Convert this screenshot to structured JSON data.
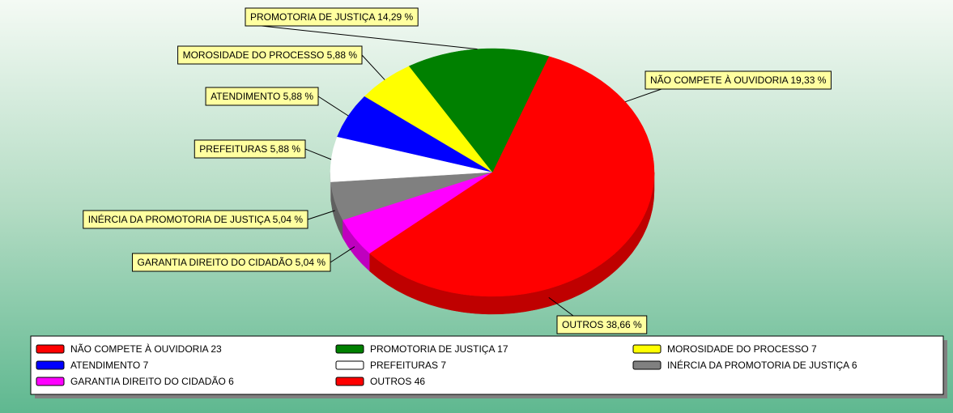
{
  "chart_data": {
    "type": "pie",
    "categories": [
      "NÃO COMPETE À OUVIDORIA",
      "PROMOTORIA DE JUSTIÇA",
      "MOROSIDADE DO PROCESSO",
      "ATENDIMENTO",
      "PREFEITURAS",
      "INÉRCIA DA PROMOTORIA DE JUSTIÇA",
      "GARANTIA DIREITO DO CIDADÃO",
      "OUTROS"
    ],
    "values": [
      23,
      17,
      7,
      7,
      7,
      6,
      6,
      46
    ],
    "percents": [
      19.33,
      14.29,
      5.88,
      5.88,
      5.88,
      5.04,
      5.04,
      38.66
    ],
    "percent_labels": [
      "19,33 %",
      "14,29 %",
      "5,88 %",
      "5,88 %",
      "5,88 %",
      "5,04 %",
      "5,04 %",
      "38,66 %"
    ],
    "colors": [
      "#ff0000",
      "#008000",
      "#ffff00",
      "#0000ff",
      "#ffffff",
      "#808080",
      "#ff00ff",
      "#ff0000"
    ],
    "legend": "bottom"
  }
}
